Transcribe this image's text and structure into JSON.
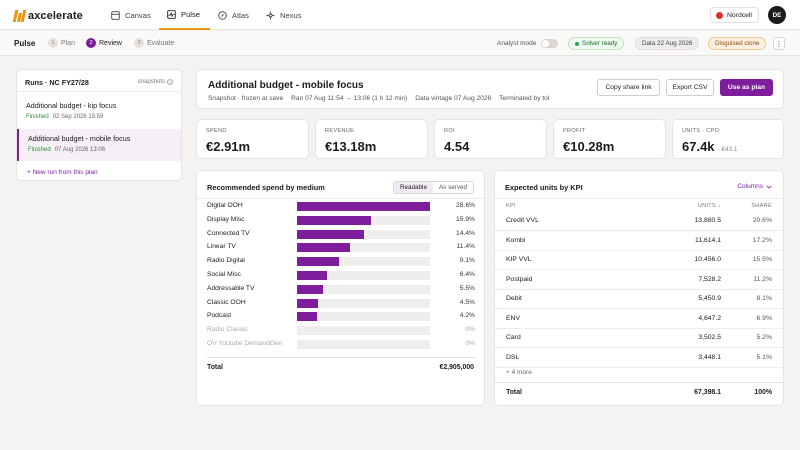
{
  "brand": {
    "name": "axcelerate",
    "accent": "#e8950f",
    "primary": "#7e1e9c"
  },
  "nav": {
    "tabs": [
      {
        "label": "Canvas",
        "icon": "canvas-icon"
      },
      {
        "label": "Pulse",
        "icon": "pulse-icon",
        "active": true
      },
      {
        "label": "Atlas",
        "icon": "compass-icon"
      },
      {
        "label": "Nexus",
        "icon": "nexus-icon"
      }
    ],
    "org": "Nordcell",
    "avatar": "DE"
  },
  "subbar": {
    "title": "Pulse",
    "steps": [
      {
        "num": "1",
        "label": "Plan"
      },
      {
        "num": "2",
        "label": "Review",
        "active": true
      },
      {
        "num": "3",
        "label": "Evaluate"
      }
    ],
    "analyst_mode": "Analyst mode",
    "solver_status": "Solver ready",
    "data_date": "Data 22 Aug 2026",
    "disguised": "Disguised clone",
    "more": "⋮"
  },
  "runs": {
    "title": "Runs · NC FY27/28",
    "snapshots": "snapshots",
    "items": [
      {
        "name": "Additional budget - kip focus",
        "status": "Finished",
        "date": "02 Sep 2026 15:59"
      },
      {
        "name": "Additional budget - mobile focus",
        "status": "Finished",
        "date": "07 Aug 2026 13:06",
        "active": true
      }
    ],
    "new_run": "+ New run from this plan"
  },
  "header": {
    "title": "Additional budget - mobile focus",
    "snapshot": "Snapshot · frozen at save",
    "ran": "Ran 07 Aug 11:54 → 13:06 (1 h 12 min)",
    "vintage": "Data vintage 07 Aug 2026",
    "terminated": "Terminated by tol",
    "copy_link": "Copy share link",
    "export_csv": "Export CSV",
    "use_plan": "Use as plan"
  },
  "kpis": [
    {
      "label": "SPEND",
      "value": "€2.91m",
      "sub": ""
    },
    {
      "label": "REVENUE",
      "value": "€13.18m",
      "sub": ""
    },
    {
      "label": "ROI",
      "value": "4.54",
      "sub": ""
    },
    {
      "label": "PROFIT",
      "value": "€10.28m",
      "sub": ""
    },
    {
      "label": "UNITS · CPO",
      "value": "67.4k",
      "sub": "· €43.1"
    }
  ],
  "chart_data": {
    "type": "bar",
    "title": "Recommended spend by medium",
    "toggle": {
      "on": "Readable",
      "off": "As served"
    },
    "categories": [
      "Digital OOH",
      "Display Misc",
      "Connected TV",
      "Linear TV",
      "Radio Digital",
      "Social Misc",
      "Addressable TV",
      "Classic OOH",
      "Podcast",
      "Radio Classic",
      "OV Youtube DemandGen"
    ],
    "values": [
      28.6,
      15.9,
      14.4,
      11.4,
      9.1,
      6.4,
      5.5,
      4.5,
      4.2,
      0,
      0
    ],
    "value_labels": [
      "28.6%",
      "15.9%",
      "14.4%",
      "11.4%",
      "9.1%",
      "6.4%",
      "5.5%",
      "4.5%",
      "4.2%",
      "0%",
      "0%"
    ],
    "xlim": [
      0,
      28.6
    ],
    "total_label": "Total",
    "total_value": "€2,905,000"
  },
  "units_table": {
    "title": "Expected units by KPI",
    "columns_btn": "Columns",
    "headers": {
      "kpi": "KPI",
      "units": "UNITS ↓",
      "share": "SHARE"
    },
    "rows": [
      {
        "kpi": "Credit VVL",
        "units": "13,880.5",
        "share": "20.6%"
      },
      {
        "kpi": "Kombi",
        "units": "11,614.1",
        "share": "17.2%"
      },
      {
        "kpi": "KIP VVL",
        "units": "10,456.0",
        "share": "15.5%"
      },
      {
        "kpi": "Postpaid",
        "units": "7,528.2",
        "share": "11.2%"
      },
      {
        "kpi": "Debit",
        "units": "5,450.9",
        "share": "8.1%"
      },
      {
        "kpi": "ENV",
        "units": "4,647.2",
        "share": "6.9%"
      },
      {
        "kpi": "Card",
        "units": "3,502.5",
        "share": "5.2%"
      },
      {
        "kpi": "DSL",
        "units": "3,448.1",
        "share": "5.1%"
      }
    ],
    "more": "+ 4 more",
    "total": {
      "label": "Total",
      "units": "67,398.1",
      "share": "100%"
    }
  }
}
